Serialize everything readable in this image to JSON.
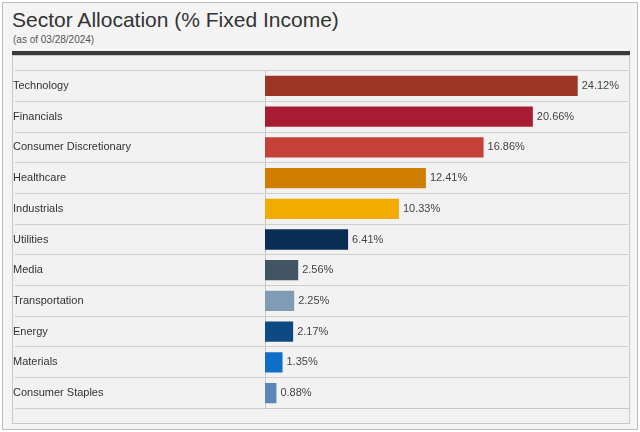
{
  "chart_data": {
    "type": "bar",
    "title": "Sector Allocation (% Fixed Income)",
    "subtitle": "(as of 03/28/2024)",
    "orientation": "horizontal",
    "categories": [
      "Technology",
      "Financials",
      "Consumer Discretionary",
      "Healthcare",
      "Industrials",
      "Utilities",
      "Media",
      "Transportation",
      "Energy",
      "Materials",
      "Consumer Staples"
    ],
    "values": [
      24.12,
      20.66,
      16.86,
      12.41,
      10.33,
      6.41,
      2.56,
      2.25,
      2.17,
      1.35,
      0.88
    ],
    "value_labels": [
      "24.12%",
      "20.66%",
      "16.86%",
      "12.41%",
      "10.33%",
      "6.41%",
      "2.56%",
      "2.25%",
      "2.17%",
      "1.35%",
      "0.88%"
    ],
    "colors": [
      "#9c3523",
      "#a81c33",
      "#c6403a",
      "#cf7f00",
      "#f2ab00",
      "#0a2d55",
      "#415563",
      "#7f9cb4",
      "#0d4a84",
      "#0f6fc6",
      "#5b86b5"
    ],
    "xlim": [
      0,
      28
    ],
    "data_labels": true,
    "tick_labels": "y",
    "grid": true
  }
}
